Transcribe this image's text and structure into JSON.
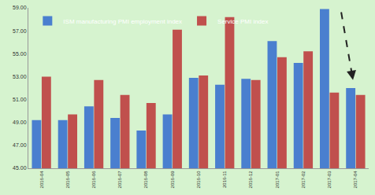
{
  "chart_data": {
    "type": "bar",
    "categories": [
      "2016-04",
      "2016-05",
      "2016-06",
      "2016-07",
      "2016-08",
      "2016-09",
      "2016-10",
      "2016-11",
      "2016-12",
      "2017-01",
      "2017-02",
      "2017-03",
      "2017-04"
    ],
    "series": [
      {
        "name": "ISM manufacturing PMI employment index",
        "color": "#4a7fcf",
        "values": [
          49.2,
          49.2,
          50.4,
          49.4,
          48.3,
          49.7,
          52.9,
          52.3,
          52.8,
          56.1,
          54.2,
          58.9,
          52.0
        ]
      },
      {
        "name": "Service PMI index",
        "color": "#c0504d",
        "values": [
          53.0,
          49.7,
          52.7,
          51.4,
          50.7,
          57.1,
          53.1,
          58.2,
          52.7,
          54.7,
          55.2,
          51.6,
          51.4
        ]
      }
    ],
    "ylim": [
      45,
      59
    ],
    "yticks": [
      {
        "value": 45,
        "label": "45.00"
      },
      {
        "value": 47,
        "label": "47.00"
      },
      {
        "value": 49,
        "label": "49.00"
      },
      {
        "value": 51,
        "label": "51.00"
      },
      {
        "value": 53,
        "label": "53.00"
      },
      {
        "value": 55,
        "label": "55.00"
      },
      {
        "value": 57,
        "label": "57.00"
      },
      {
        "value": 59,
        "label": "59.00"
      }
    ],
    "grid": false,
    "legend": "upper left"
  }
}
